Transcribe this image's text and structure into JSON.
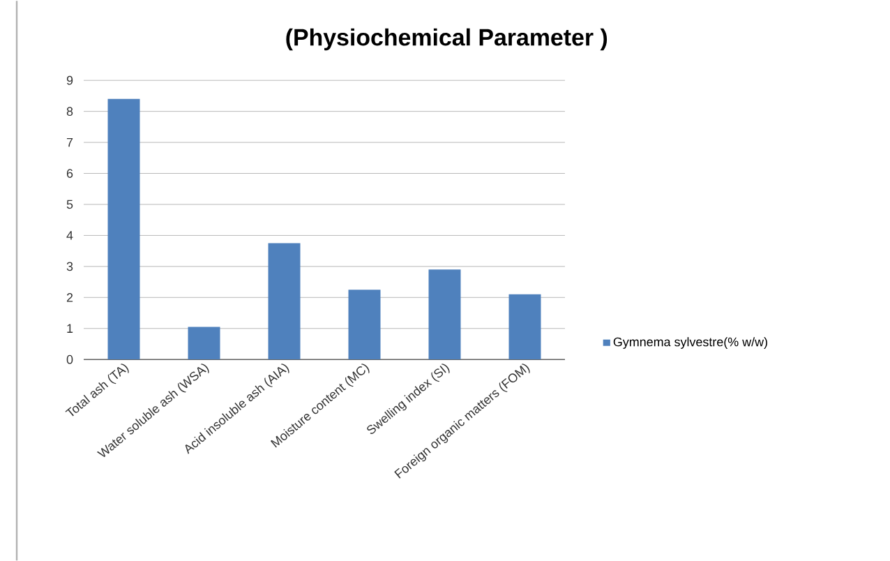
{
  "chart_data": {
    "type": "bar",
    "title": "(Physiochemical Parameter )",
    "categories": [
      "Total ash (TA)",
      "Water soluble ash (WSA)",
      "Acid insoluble ash (AIA)",
      "Moisture content (MC)",
      "Swelling index (SI)",
      "Foreign organic matters  (FOM)"
    ],
    "series": [
      {
        "name": "Gymnema sylvestre(% w/w)",
        "color": "#4f81bd",
        "values": [
          8.4,
          1.05,
          3.75,
          2.25,
          2.9,
          2.1
        ]
      }
    ],
    "ylim": [
      0,
      9
    ],
    "yticks": [
      0,
      1,
      2,
      3,
      4,
      5,
      6,
      7,
      8,
      9
    ],
    "grid": "y",
    "legend": "right"
  }
}
